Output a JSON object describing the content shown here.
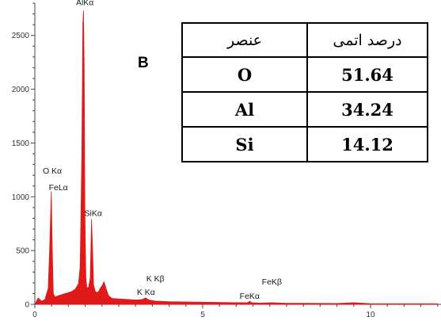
{
  "chart_data": {
    "type": "area",
    "x": [
      0.0,
      0.1,
      0.2,
      0.3,
      0.4,
      0.45,
      0.49,
      0.52,
      0.55,
      0.6,
      0.7,
      0.8,
      0.9,
      1.0,
      1.1,
      1.2,
      1.3,
      1.35,
      1.4,
      1.43,
      1.45,
      1.47,
      1.49,
      1.52,
      1.55,
      1.6,
      1.65,
      1.69,
      1.72,
      1.75,
      1.8,
      1.85,
      1.9,
      1.95,
      2.0,
      2.06,
      2.1,
      2.15,
      2.2,
      2.3,
      2.5,
      2.8,
      3.0,
      3.2,
      3.3,
      3.4,
      3.6,
      4.0,
      5.0,
      6.0,
      6.35,
      6.4,
      6.45,
      6.7,
      7.05,
      7.5,
      8.0,
      9.0,
      9.5,
      10.0,
      11.0,
      12.0
    ],
    "y": [
      0,
      60,
      30,
      45,
      150,
      600,
      1050,
      500,
      100,
      70,
      80,
      90,
      100,
      110,
      120,
      140,
      190,
      350,
      1400,
      2600,
      2730,
      2200,
      900,
      250,
      150,
      160,
      240,
      790,
      500,
      180,
      120,
      110,
      120,
      150,
      170,
      210,
      170,
      120,
      80,
      55,
      50,
      45,
      40,
      45,
      60,
      40,
      30,
      25,
      20,
      15,
      15,
      30,
      15,
      12,
      15,
      10,
      10,
      8,
      15,
      6,
      5,
      5
    ],
    "xlim": [
      0,
      12.1
    ],
    "ylim": [
      0,
      2800
    ],
    "x_ticks": [
      0,
      5,
      10
    ],
    "y_ticks": [
      0,
      500,
      1000,
      1500,
      2000,
      2500
    ],
    "color": "#e01a1a",
    "peak_labels": [
      {
        "text": "AlKα",
        "x": 1.49,
        "y": 2780
      },
      {
        "text": "O Kα",
        "x": 0.52,
        "y": 1215
      },
      {
        "text": "FeLα",
        "x": 0.7,
        "y": 1060
      },
      {
        "text": "SiKα",
        "x": 1.74,
        "y": 820
      },
      {
        "text": "K Kβ",
        "x": 3.59,
        "y": 215
      },
      {
        "text": "K Kα",
        "x": 3.31,
        "y": 90
      },
      {
        "text": "FeKα",
        "x": 6.4,
        "y": 50
      },
      {
        "text": "FeKβ",
        "x": 7.06,
        "y": 185
      }
    ]
  },
  "panel_label": "B",
  "table": {
    "headers": [
      "عنصر",
      "درصد اتمی"
    ],
    "rows": [
      [
        "O",
        "51.64"
      ],
      [
        "Al",
        "34.24"
      ],
      [
        "Si",
        "14.12"
      ]
    ]
  }
}
